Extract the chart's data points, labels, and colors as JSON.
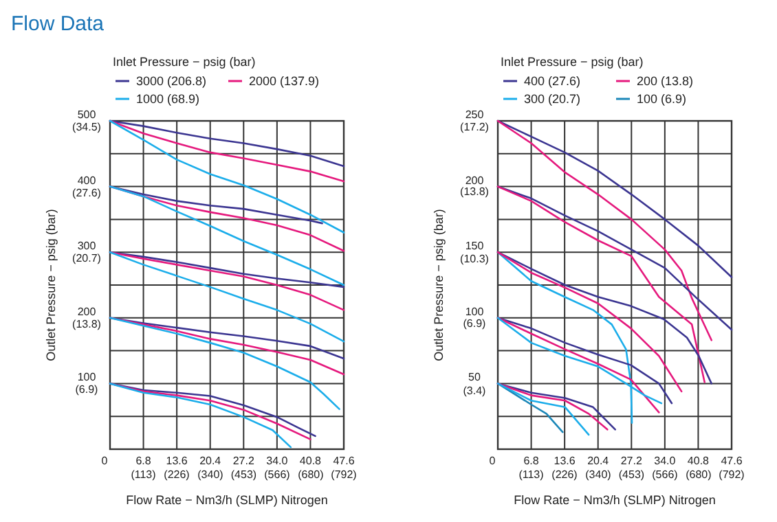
{
  "chart_data": [
    {
      "type": "line",
      "title": "Flow Data",
      "xlabel": "Flow Rate − Nm3/h (SLMP) Nitrogen",
      "y2label": "Outlet Pressure − psig (bar)",
      "legend_title": "Inlet Pressure − psig (bar)",
      "legend": "top",
      "grid": true,
      "line_style": "solid",
      "marker": "none",
      "xlim": [
        0,
        47.6
      ],
      "ylim": [
        0,
        500
      ],
      "xticks": [
        0,
        6.8,
        13.6,
        20.4,
        27.2,
        {
          "value": 34,
          "label": "34.0"
        },
        40.8,
        47.6
      ],
      "x2lim": [
        0,
        792
      ],
      "x2ticks": [
        {
          "value": 113,
          "label": "(113)"
        },
        {
          "value": 226,
          "label": "(226)"
        },
        {
          "value": 340,
          "label": "(340)"
        },
        {
          "value": 453,
          "label": "(453)"
        },
        {
          "value": 566,
          "label": "(566)"
        },
        {
          "value": 680,
          "label": "(680)"
        },
        {
          "value": 792,
          "label": "(792)"
        }
      ],
      "yticks": [
        {
          "value": 0,
          "label": null
        },
        {
          "value": 50,
          "label": null
        },
        100,
        {
          "value": 150,
          "label": null
        },
        200,
        {
          "value": 250,
          "label": null
        },
        300,
        {
          "value": 350,
          "label": null
        },
        400,
        {
          "value": 450,
          "label": null
        },
        500
      ],
      "y2lim": [
        0,
        34.5
      ],
      "y2ticks": [
        {
          "value": 6.9,
          "label": "(6.9)"
        },
        {
          "value": 13.8,
          "label": "(13.8)"
        },
        {
          "value": 20.7,
          "label": "(20.7)"
        },
        {
          "value": 27.6,
          "label": "(27.6)"
        },
        {
          "value": 34.5,
          "label": "(34.5)"
        }
      ],
      "series": [
        {
          "name": "3000 (206.8)",
          "color": "#3b3591",
          "x": [
            0,
            6.8,
            13.6,
            20.4,
            27.2,
            34,
            40.8,
            47.6
          ],
          "values": [
            500,
            492,
            482,
            473,
            466,
            457,
            447,
            431
          ]
        },
        {
          "name": "2000 (137.9)",
          "color": "#e5197d",
          "x": [
            0,
            6.8,
            13.6,
            20.4,
            27.2,
            34,
            40.8,
            47.6
          ],
          "values": [
            500,
            481,
            466,
            452,
            443,
            433,
            423,
            408
          ]
        },
        {
          "name": "1000 (68.9)",
          "color": "#1badea",
          "x": [
            0,
            6.8,
            13.6,
            20.4,
            27.2,
            34,
            40.8,
            47.6
          ],
          "values": [
            500,
            471,
            441,
            419,
            402,
            381,
            357,
            330
          ]
        },
        {
          "color": "#3b3591",
          "x": [
            0,
            6.8,
            13.6,
            20.4,
            27.2,
            34,
            40.8,
            43.2
          ],
          "values": [
            400,
            388,
            378,
            371,
            366,
            357,
            348,
            344
          ]
        },
        {
          "color": "#e5197d",
          "x": [
            0,
            6.8,
            13.6,
            20.4,
            27.2,
            34,
            40.8,
            47.6
          ],
          "values": [
            400,
            385,
            371,
            361,
            352,
            341,
            326,
            302
          ]
        },
        {
          "color": "#1badea",
          "x": [
            0,
            6.8,
            13.6,
            20.4,
            27.2,
            34,
            40.8,
            47.6
          ],
          "values": [
            400,
            385,
            362,
            340,
            317,
            296,
            274,
            250
          ]
        },
        {
          "color": "#3b3591",
          "x": [
            0,
            6.8,
            13.6,
            20.4,
            27.2,
            34,
            40.8,
            47.6
          ],
          "values": [
            300,
            293,
            285,
            276,
            267,
            260,
            254,
            247
          ]
        },
        {
          "color": "#e5197d",
          "x": [
            0,
            6.8,
            13.6,
            20.4,
            27.2,
            34,
            40.8,
            47.6
          ],
          "values": [
            300,
            290,
            281,
            272,
            263,
            250,
            235,
            212
          ]
        },
        {
          "color": "#1badea",
          "x": [
            0,
            6.8,
            13.6,
            20.4,
            27.2,
            34,
            40.8,
            47.6
          ],
          "values": [
            300,
            281,
            264,
            247,
            229,
            212,
            191,
            164
          ]
        },
        {
          "color": "#3b3591",
          "x": [
            0,
            6.8,
            13.6,
            20.4,
            27.2,
            34,
            40.8,
            47.6
          ],
          "values": [
            200,
            192,
            185,
            178,
            172,
            165,
            157,
            138
          ]
        },
        {
          "color": "#e5197d",
          "x": [
            0,
            6.8,
            13.6,
            20.4,
            27.2,
            34,
            40.8,
            47.6
          ],
          "values": [
            200,
            190,
            180,
            168,
            159,
            148,
            136,
            114
          ]
        },
        {
          "color": "#1badea",
          "x": [
            0,
            6.8,
            13.6,
            20.4,
            27.2,
            34,
            40.8,
            43.5,
            46.7
          ],
          "values": [
            200,
            188,
            176,
            162,
            147,
            126,
            102,
            84,
            61
          ]
        },
        {
          "color": "#3b3591",
          "x": [
            0,
            6.8,
            13.6,
            20.4,
            27.2,
            34,
            38.5,
            41.8
          ],
          "values": [
            100,
            90,
            86,
            81,
            67,
            49,
            32,
            20
          ]
        },
        {
          "color": "#e5197d",
          "x": [
            0,
            6.8,
            13.6,
            20.4,
            27.2,
            34,
            40.8
          ],
          "values": [
            100,
            88,
            82,
            74,
            60,
            39,
            15
          ]
        },
        {
          "color": "#1badea",
          "x": [
            0,
            6.8,
            13.6,
            20.4,
            27.2,
            33.1,
            36.8
          ],
          "values": [
            100,
            86,
            79,
            68,
            49,
            29,
            3
          ]
        }
      ]
    },
    {
      "type": "line",
      "xlabel": "Flow Rate − Nm3/h (SLMP) Nitrogen",
      "y2label": "Outlet Pressure − psig (bar)",
      "legend_title": "Inlet Pressure − psig (bar)",
      "legend": "top",
      "grid": true,
      "line_style": "solid",
      "marker": "none",
      "xlim": [
        0,
        47.6
      ],
      "ylim": [
        0,
        250
      ],
      "xticks": [
        0,
        6.8,
        13.6,
        20.4,
        27.2,
        {
          "value": 34,
          "label": "34.0"
        },
        40.8,
        47.6
      ],
      "x2lim": [
        0,
        792
      ],
      "x2ticks": [
        {
          "value": 113,
          "label": "(113)"
        },
        {
          "value": 226,
          "label": "(226)"
        },
        {
          "value": 340,
          "label": "(340)"
        },
        {
          "value": 453,
          "label": "(453)"
        },
        {
          "value": 566,
          "label": "(566)"
        },
        {
          "value": 680,
          "label": "(680)"
        },
        {
          "value": 792,
          "label": "(792)"
        }
      ],
      "yticks": [
        {
          "value": 0,
          "label": null
        },
        {
          "value": 25,
          "label": null
        },
        50,
        {
          "value": 75,
          "label": null
        },
        100,
        {
          "value": 125,
          "label": null
        },
        150,
        {
          "value": 175,
          "label": null
        },
        200,
        {
          "value": 225,
          "label": null
        },
        250
      ],
      "y2lim": [
        0,
        17.2
      ],
      "y2ticks": [
        {
          "value": 3.4,
          "label": "(3.4)"
        },
        {
          "value": 6.9,
          "label": "(6.9)"
        },
        {
          "value": 10.3,
          "label": "(10.3)"
        },
        {
          "value": 13.8,
          "label": "(13.8)"
        },
        {
          "value": 17.2,
          "label": "(17.2)"
        }
      ],
      "series": [
        {
          "name": "400 (27.6)",
          "color": "#3b3591",
          "x": [
            0,
            6.8,
            13.6,
            20.4,
            27.2,
            34,
            40.8,
            47.6
          ],
          "values": [
            250,
            238,
            226,
            212,
            194,
            175,
            155,
            131
          ]
        },
        {
          "name": "200 (13.8)",
          "color": "#e5197d",
          "x": [
            0,
            6.8,
            13.6,
            20.4,
            27.2,
            34,
            37.4,
            39.5,
            43.5
          ],
          "values": [
            250,
            233,
            211,
            194,
            175,
            152,
            136,
            115,
            83
          ]
        },
        {
          "name": "300 (20.7)",
          "color": "#1badea",
          "x": [
            0,
            6.8,
            13.6,
            19.4,
            23.2,
            26.1,
            27.1,
            27.3
          ],
          "values": [
            150,
            128,
            116,
            106,
            95,
            76,
            50,
            20
          ]
        },
        {
          "name": "100 (6.9)",
          "color": "#1b87b8",
          "x": [
            0,
            6.8,
            9.9,
            13.2
          ],
          "values": [
            50,
            34,
            27,
            13
          ]
        },
        {
          "color": "#3b3591",
          "x": [
            0,
            6.8,
            13.6,
            20.4,
            27.2,
            34,
            40.5,
            47.6
          ],
          "values": [
            200,
            191,
            178,
            166,
            152,
            138,
            115,
            91
          ]
        },
        {
          "color": "#e5197d",
          "x": [
            0,
            6.8,
            13.6,
            20.4,
            27.2,
            32.8,
            39.5,
            42.1
          ],
          "values": [
            200,
            189,
            173,
            159,
            147,
            116,
            95,
            51
          ]
        },
        {
          "color": "#3b3591",
          "x": [
            0,
            7,
            13.7,
            20.4,
            27.1,
            33.8,
            38.5,
            40.9,
            43.5
          ],
          "values": [
            150,
            137,
            125,
            116,
            109,
            99,
            85,
            71,
            50
          ]
        },
        {
          "color": "#e5197d",
          "x": [
            0,
            7,
            13.7,
            20.4,
            27.1,
            32.8,
            37.4
          ],
          "values": [
            150,
            134,
            123,
            111,
            92,
            71,
            44
          ]
        },
        {
          "color": "#3b3591",
          "x": [
            0,
            6.8,
            13.7,
            20.4,
            27.1,
            32.8,
            35.4
          ],
          "values": [
            100,
            92,
            81,
            72,
            64,
            50,
            35
          ]
        },
        {
          "color": "#e5197d",
          "x": [
            0,
            6.8,
            13.7,
            20.4,
            27.1,
            32.8
          ],
          "values": [
            100,
            88,
            76,
            65,
            53,
            28
          ]
        },
        {
          "color": "#1badea",
          "x": [
            0,
            6.8,
            13.7,
            20.4,
            26.1,
            29.9,
            33.3
          ],
          "values": [
            100,
            81,
            71,
            63,
            50,
            41,
            35
          ]
        },
        {
          "color": "#3b3591",
          "x": [
            0,
            6.8,
            13.7,
            19.4,
            23.9
          ],
          "values": [
            50,
            43,
            39,
            32,
            15
          ]
        },
        {
          "color": "#e5197d",
          "x": [
            0,
            6.8,
            13.7,
            18.5,
            22.3
          ],
          "values": [
            50,
            41,
            37,
            27,
            15
          ]
        },
        {
          "color": "#1badea",
          "x": [
            0,
            6.8,
            13.7,
            18.5
          ],
          "values": [
            50,
            37,
            32,
            11
          ]
        }
      ]
    }
  ]
}
